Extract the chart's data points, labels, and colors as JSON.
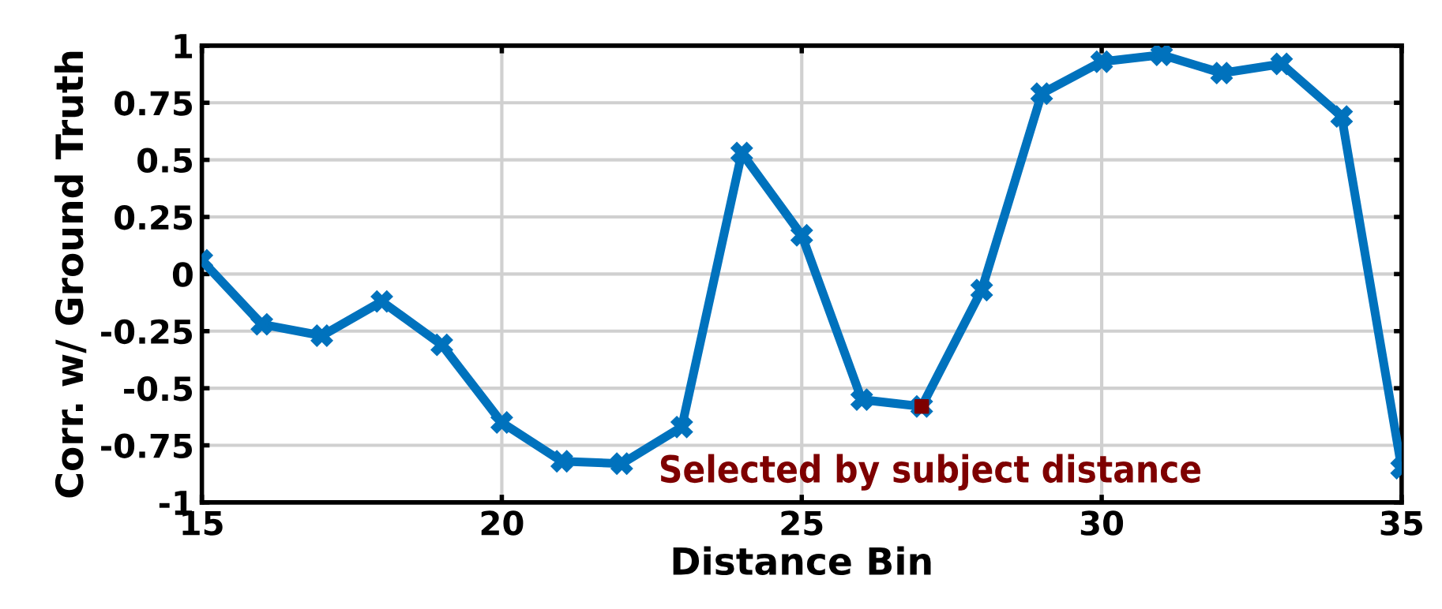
{
  "chart_data": {
    "type": "line",
    "xlabel": "Distance Bin",
    "ylabel": "Corr. w/ Ground Truth",
    "x": [
      15,
      16,
      17,
      18,
      19,
      20,
      21,
      22,
      23,
      24,
      25,
      26,
      27,
      28,
      29,
      30,
      31,
      32,
      33,
      34,
      35
    ],
    "series": [
      {
        "color": "#0072bd",
        "marker": "cross",
        "line_style": "solid",
        "values": [
          0.06,
          -0.22,
          -0.27,
          -0.12,
          -0.31,
          -0.65,
          -0.82,
          -0.83,
          -0.67,
          0.53,
          0.17,
          -0.55,
          -0.58,
          -0.07,
          0.79,
          0.93,
          0.96,
          0.88,
          0.92,
          0.69,
          -0.85
        ]
      },
      {
        "type": "scatter",
        "color": "#7e0000",
        "marker": "square",
        "x": [
          27
        ],
        "values": [
          -0.58
        ]
      }
    ],
    "annotations": [
      {
        "text": "Selected by subject distance",
        "x": 27,
        "y": -0.58
      }
    ],
    "xlim": [
      15,
      35
    ],
    "xticks": [
      15,
      20,
      25,
      30,
      35
    ],
    "ylim": [
      -1,
      1
    ],
    "yticks": [
      -1,
      -0.75,
      -0.5,
      -0.25,
      0,
      0.25,
      0.5,
      0.75,
      1
    ],
    "grid": true,
    "legend": false
  }
}
